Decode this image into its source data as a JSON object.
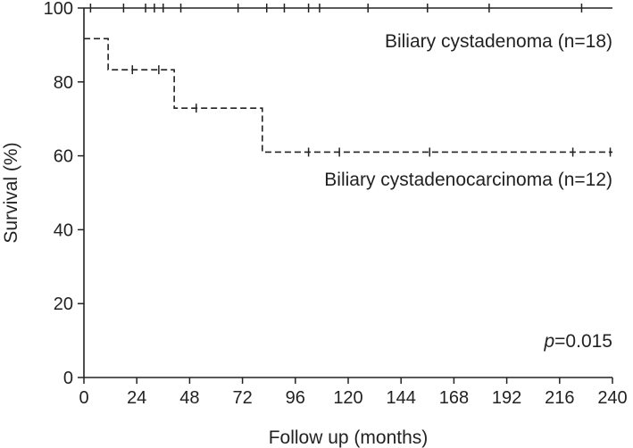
{
  "chart_data": {
    "type": "line",
    "title": "",
    "xlabel": "Follow up (months)",
    "ylabel": "Survival (%)",
    "xlim": [
      0,
      240
    ],
    "ylim": [
      0,
      100
    ],
    "xticks": [
      0,
      24,
      48,
      72,
      96,
      120,
      144,
      168,
      192,
      216,
      240
    ],
    "yticks": [
      0,
      20,
      40,
      60,
      80,
      100
    ],
    "grid": false,
    "annotation": {
      "prefix": "p",
      "text": "=0.015"
    },
    "series": [
      {
        "name": "Biliary cystadenoma (n=18)",
        "style": "solid",
        "color": "#222222",
        "steps": [
          [
            0,
            100
          ],
          [
            240,
            100
          ]
        ],
        "censored": [
          3,
          18,
          28,
          32,
          36,
          44,
          70,
          83,
          91,
          102,
          107,
          129,
          156,
          184,
          226
        ]
      },
      {
        "name": "Biliary cystadenocarcinoma (n=12)",
        "style": "dashed",
        "color": "#222222",
        "steps": [
          [
            0,
            91.7
          ],
          [
            11,
            83.3
          ],
          [
            41,
            72.9
          ],
          [
            81,
            61.0
          ],
          [
            240,
            61.0
          ]
        ],
        "censored": [
          22,
          34,
          51,
          102,
          116,
          157,
          222,
          239
        ]
      }
    ]
  }
}
